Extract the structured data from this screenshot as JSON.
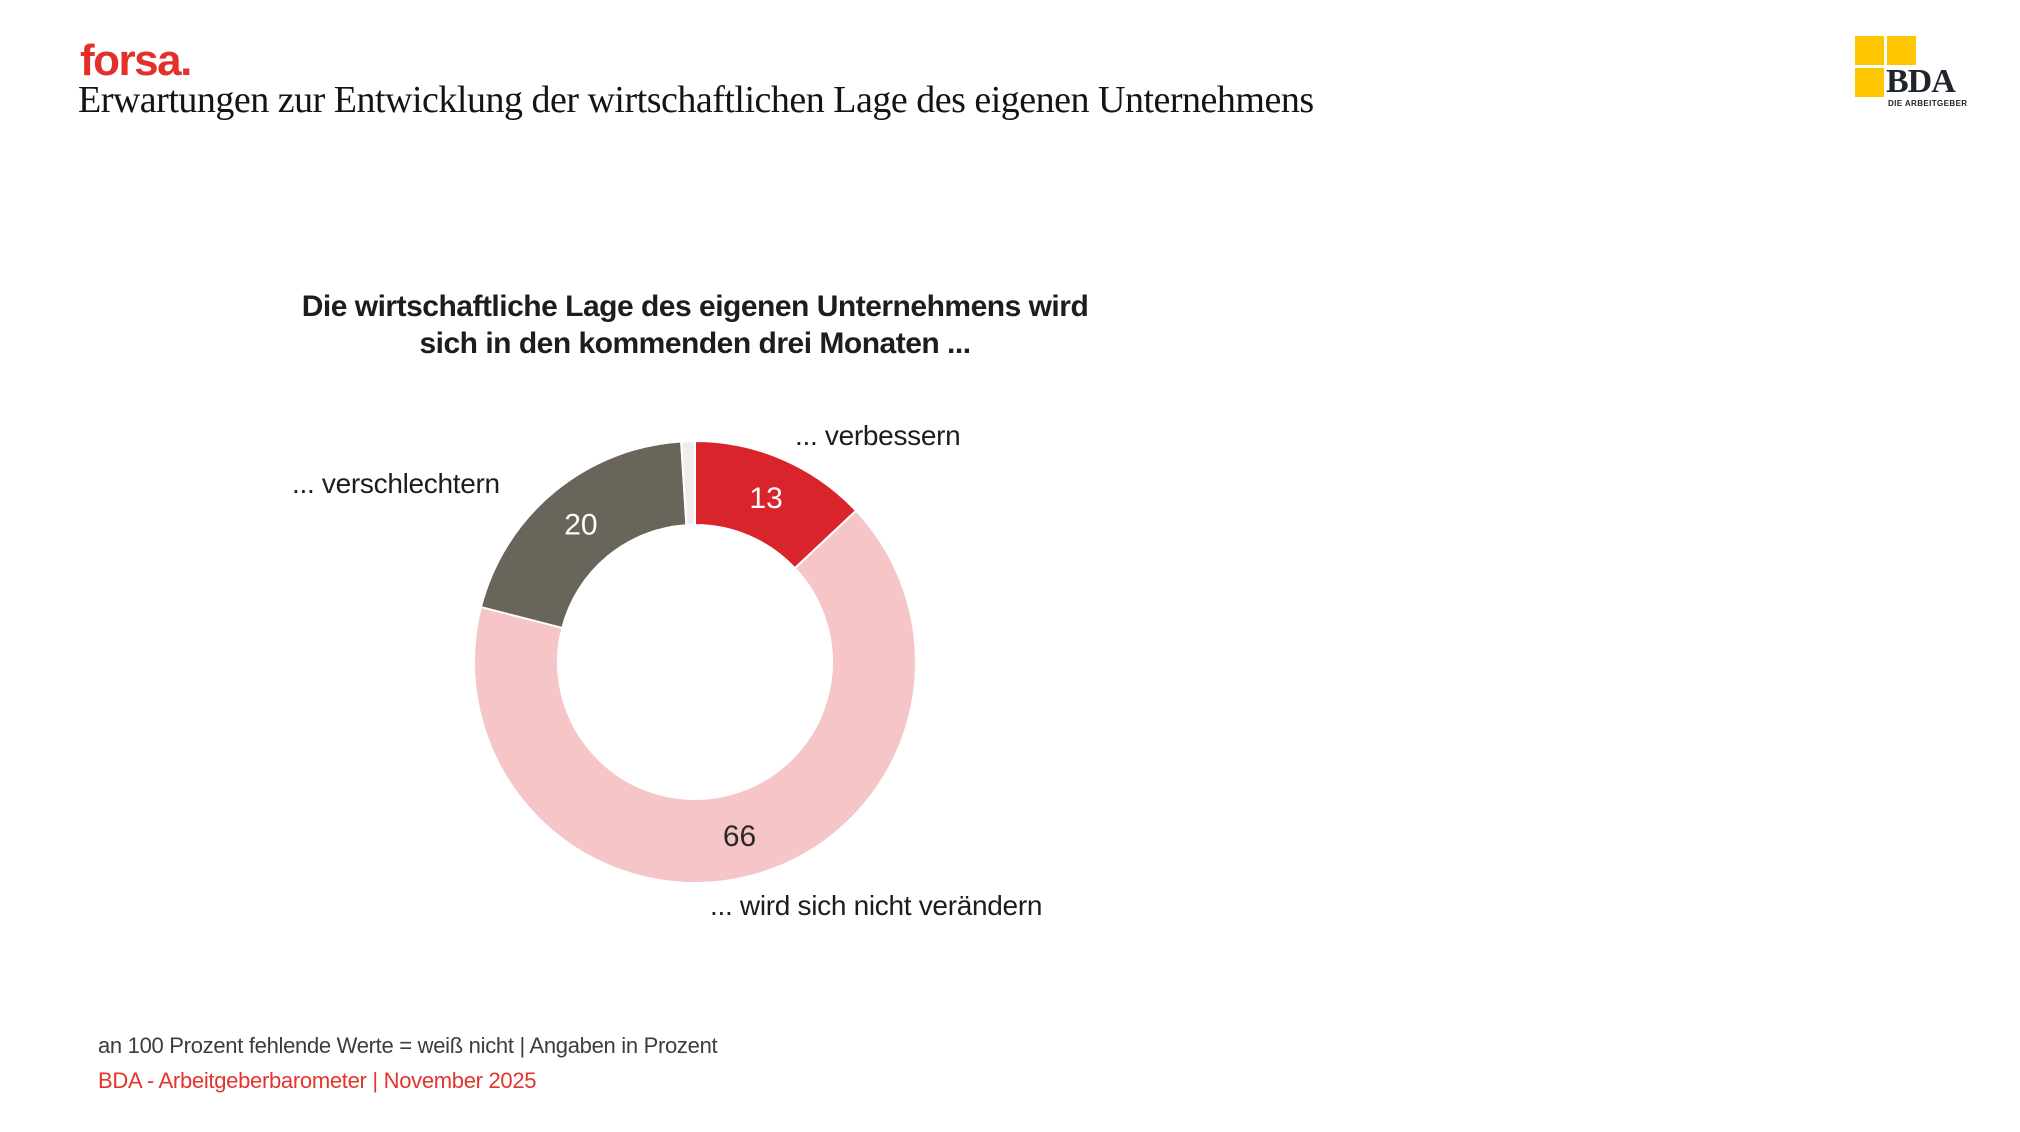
{
  "header": {
    "brand": "forsa.",
    "title": "Erwartungen zur Entwicklung der wirtschaftlichen Lage des eigenen Unternehmens"
  },
  "logo": {
    "name": "BDA",
    "subtitle": "DIE ARBEITGEBER",
    "yellow": "#fdc600",
    "text_color": "#20242c"
  },
  "colors": {
    "brand_red": "#e2312b",
    "footer_red": "#e4342d",
    "text_dark": "#1d1d1b"
  },
  "chart_data": {
    "type": "pie",
    "subtype": "donut",
    "title": "Die wirtschaftliche Lage des eigenen Unternehmens wird sich in den kommenden drei Monaten ...",
    "title_line1": "Die wirtschaftliche Lage des eigenen Unternehmens wird",
    "title_line2": "sich in den kommenden drei Monaten ...",
    "start_angle_deg": 0,
    "direction": "clockwise",
    "series": [
      {
        "label": "... verbessern",
        "value": 13,
        "color": "#d9242c",
        "value_label_color": "#ffffff"
      },
      {
        "label": "... wird sich nicht verändern",
        "value": 66,
        "color": "#f5c5c8",
        "value_label_color": "#2b2a29"
      },
      {
        "label": "... verschlechtern",
        "value": 20,
        "color": "#69655a",
        "value_label_color": "#ffffff"
      },
      {
        "label": "",
        "value": 1,
        "color": "#f0eeec",
        "value_label_color": null
      }
    ]
  },
  "footer": {
    "note": "an 100 Prozent fehlende Werte = weiß nicht | Angaben in Prozent",
    "source": "BDA - Arbeitgeberbarometer | November 2025"
  }
}
